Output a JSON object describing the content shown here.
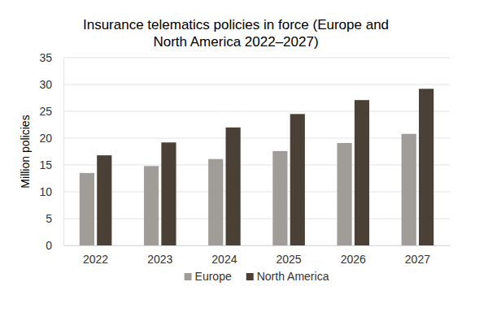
{
  "chart_data": {
    "type": "bar",
    "title": "Insurance telematics policies in force (Europe and North America 2022–2027)",
    "y_label": "Million policies",
    "categories": [
      "2022",
      "2023",
      "2024",
      "2025",
      "2026",
      "2027"
    ],
    "series": [
      {
        "name": "Europe",
        "color": "#a09d98",
        "values": [
          13.5,
          14.8,
          16.1,
          17.6,
          19.1,
          20.8
        ]
      },
      {
        "name": "North America",
        "color": "#4a4035",
        "values": [
          16.8,
          19.2,
          22.0,
          24.5,
          27.1,
          29.2
        ]
      }
    ],
    "ylim": [
      0,
      35
    ],
    "yticks": [
      0,
      5,
      10,
      15,
      20,
      25,
      30,
      35
    ],
    "grid": true,
    "legend": "bottom"
  }
}
